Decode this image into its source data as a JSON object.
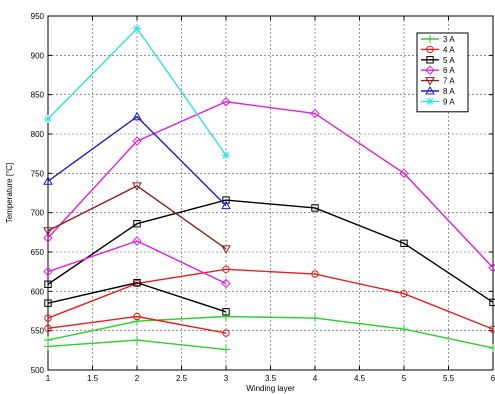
{
  "chart_data": {
    "type": "line",
    "xlabel": "Winding layer",
    "ylabel": "Temperature [°C]",
    "xlim": [
      1,
      6
    ],
    "ylim": [
      500,
      950
    ],
    "xticks": [
      "1",
      "1.5",
      "2",
      "2.5",
      "3",
      "3.5",
      "4",
      "4.5",
      "5",
      "5.5",
      "6"
    ],
    "yticks": [
      "500",
      "550",
      "600",
      "650",
      "700",
      "750",
      "800",
      "850",
      "900",
      "950"
    ],
    "grid": true,
    "legend_position": "top-right",
    "series": [
      {
        "name": "3 A",
        "color": "#33cc33",
        "marker": "plus",
        "lines": [
          {
            "x": [
              1,
              2,
              3,
              4,
              5,
              6
            ],
            "y": [
              538,
              562,
              568,
              566,
              552,
              528
            ]
          },
          {
            "x": [
              1,
              2,
              3
            ],
            "y": [
              530,
              538,
              526
            ]
          }
        ]
      },
      {
        "name": "4 A",
        "color": "#e02020",
        "marker": "circle",
        "lines": [
          {
            "x": [
              1,
              2,
              3,
              4,
              5,
              6
            ],
            "y": [
              566,
              610,
              628,
              622,
              597,
              552
            ]
          },
          {
            "x": [
              1,
              2,
              3
            ],
            "y": [
              553,
              568,
              547
            ]
          }
        ]
      },
      {
        "name": "5 A",
        "color": "#000000",
        "marker": "square",
        "lines": [
          {
            "x": [
              1,
              2,
              3,
              4,
              5,
              6
            ],
            "y": [
              609,
              686,
              716,
              706,
              661,
              586
            ]
          },
          {
            "x": [
              1,
              2,
              3
            ],
            "y": [
              585,
              611,
              574
            ]
          }
        ]
      },
      {
        "name": "6 A",
        "color": "#e020e0",
        "marker": "diamond",
        "lines": [
          {
            "x": [
              1,
              2,
              3,
              4,
              5,
              6
            ],
            "y": [
              668,
              791,
              841,
              826,
              750,
              630
            ]
          },
          {
            "x": [
              1,
              2,
              3
            ],
            "y": [
              625,
              664,
              610
            ]
          }
        ]
      },
      {
        "name": "7 A",
        "color": "#8b2020",
        "marker": "triangle-down",
        "lines": [
          {
            "x": [
              1,
              2,
              3
            ],
            "y": [
              677,
              734,
              654
            ]
          }
        ]
      },
      {
        "name": "8 A",
        "color": "#1f1fcc",
        "marker": "triangle-up",
        "lines": [
          {
            "x": [
              1,
              2,
              3
            ],
            "y": [
              740,
              822,
              709
            ]
          }
        ]
      },
      {
        "name": "9 A",
        "color": "#33e0e0",
        "marker": "star",
        "lines": [
          {
            "x": [
              1,
              2,
              3
            ],
            "y": [
              819,
              934,
              773
            ]
          }
        ]
      }
    ]
  }
}
